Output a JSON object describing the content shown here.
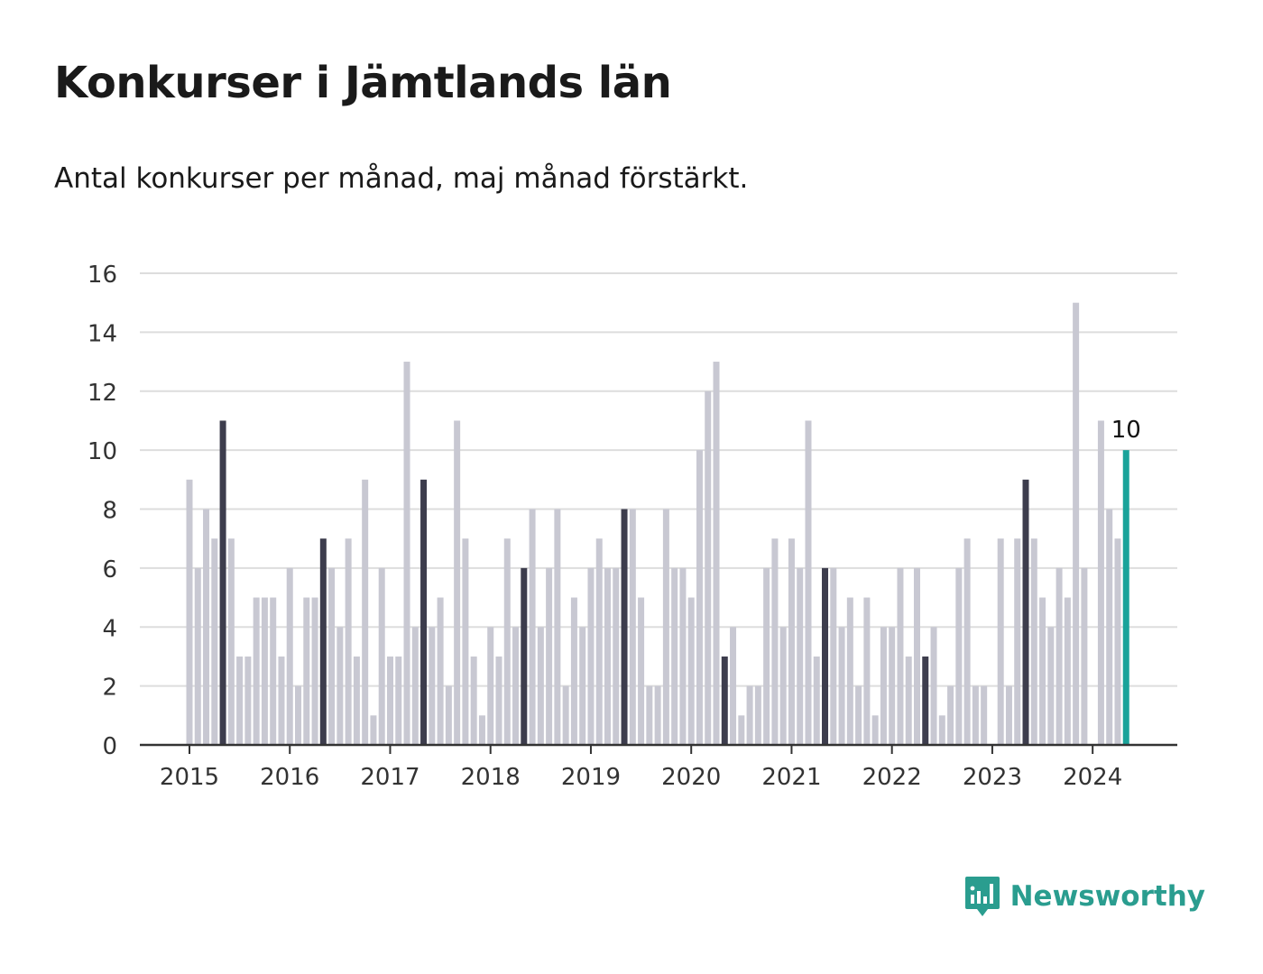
{
  "header": {
    "title": "Konkurser i Jämtlands län",
    "subtitle": "Antal konkurser per månad, maj månad förstärkt."
  },
  "brand": {
    "name": "Newsworthy"
  },
  "colors": {
    "bar_default": "#c8c8d2",
    "bar_highlight": "#3d3d4d",
    "bar_latest": "#1aa39a",
    "gridline": "#dddddd",
    "axis": "#333333",
    "brand": "#2a9d8f"
  },
  "chart_data": {
    "type": "bar",
    "start": "2015-01",
    "frequency": "monthly",
    "highlight_month": "maj",
    "ylim": [
      0,
      16
    ],
    "yticks": [
      0,
      2,
      4,
      6,
      8,
      10,
      12,
      14,
      16
    ],
    "xticks": [
      "2015",
      "2016",
      "2017",
      "2018",
      "2019",
      "2020",
      "2021",
      "2022",
      "2023",
      "2024"
    ],
    "grid": true,
    "values": [
      9,
      6,
      8,
      7,
      11,
      7,
      3,
      3,
      5,
      5,
      5,
      3,
      6,
      2,
      5,
      5,
      7,
      6,
      4,
      7,
      3,
      9,
      1,
      6,
      3,
      3,
      13,
      4,
      9,
      4,
      5,
      2,
      11,
      7,
      3,
      1,
      4,
      3,
      7,
      4,
      6,
      8,
      4,
      6,
      8,
      2,
      5,
      4,
      6,
      7,
      6,
      6,
      8,
      8,
      5,
      2,
      2,
      8,
      6,
      6,
      5,
      10,
      12,
      13,
      3,
      4,
      1,
      2,
      2,
      6,
      7,
      4,
      7,
      6,
      11,
      3,
      6,
      6,
      4,
      5,
      2,
      5,
      1,
      4,
      4,
      6,
      3,
      6,
      3,
      4,
      1,
      2,
      6,
      7,
      2,
      2,
      0,
      7,
      2,
      7,
      9,
      7,
      5,
      4,
      6,
      5,
      15,
      6,
      0,
      11,
      8,
      7,
      10
    ],
    "annotations": [
      {
        "label": "10"
      }
    ]
  }
}
